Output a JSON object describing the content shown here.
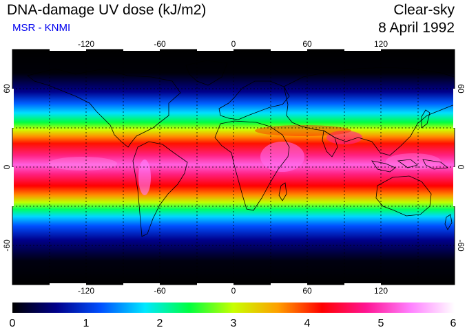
{
  "header": {
    "title": "DNA-damage UV dose (kJ/m2)",
    "subtitle": "MSR - KNMI",
    "scenario": "Clear-sky",
    "date": "8 April 1992"
  },
  "map": {
    "projection": "equirectangular",
    "lon_range": [
      -180,
      180
    ],
    "lat_range": [
      -90,
      90
    ],
    "lon_ticks": [
      "-120",
      "-60",
      "0",
      "60",
      "120"
    ],
    "lat_ticks": [
      "60",
      "0",
      "-60"
    ],
    "grid_lon": [
      -150,
      -120,
      -90,
      -60,
      -30,
      0,
      30,
      60,
      90,
      120,
      150
    ],
    "grid_lat": [
      -60,
      -30,
      0,
      30,
      60
    ],
    "grid_style": "dotted"
  },
  "colorbar": {
    "min": 0,
    "max": 6,
    "tick_labels": [
      "0",
      "1",
      "2",
      "3",
      "4",
      "5",
      "6"
    ],
    "colors": [
      "#000000",
      "#00008b",
      "#0050ff",
      "#00e8ff",
      "#00ff40",
      "#c8ff00",
      "#ffa000",
      "#ff0000",
      "#ff1493",
      "#ff80ff",
      "#ffffff"
    ]
  },
  "colors": {
    "ocean_night": "#000000",
    "coast": "#000000"
  }
}
